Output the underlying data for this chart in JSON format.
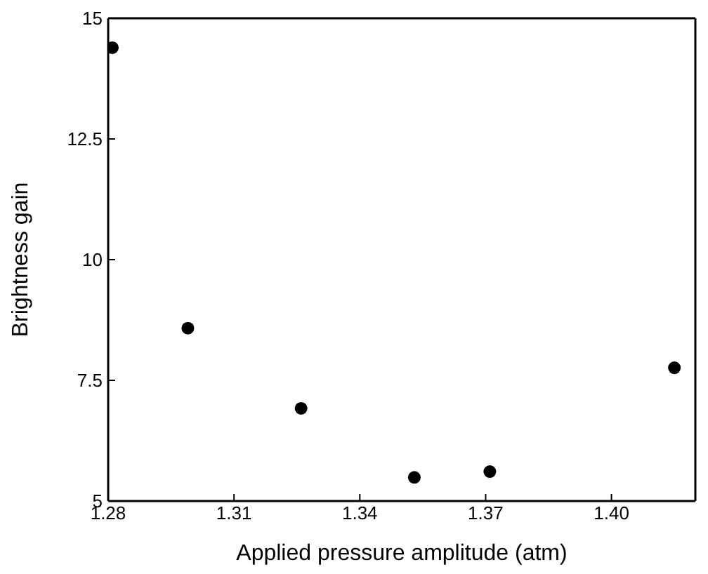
{
  "chart_data": {
    "type": "scatter",
    "xlabel": "Applied pressure amplitude (atm)",
    "ylabel": "Brightness gain",
    "x": [
      1.281,
      1.299,
      1.326,
      1.353,
      1.371,
      1.415
    ],
    "series": [
      {
        "color": "#000000",
        "values": [
          14.39,
          8.58,
          6.92,
          5.49,
          5.61,
          7.76
        ]
      }
    ],
    "xlim": [
      1.28,
      1.42
    ],
    "xticks": [
      1.28,
      1.31,
      1.34,
      1.37,
      {
        "value": 1.4,
        "label": "1.40"
      }
    ],
    "ylim": [
      5,
      15
    ],
    "yticks": [
      5,
      7.5,
      10,
      12.5,
      15
    ]
  }
}
